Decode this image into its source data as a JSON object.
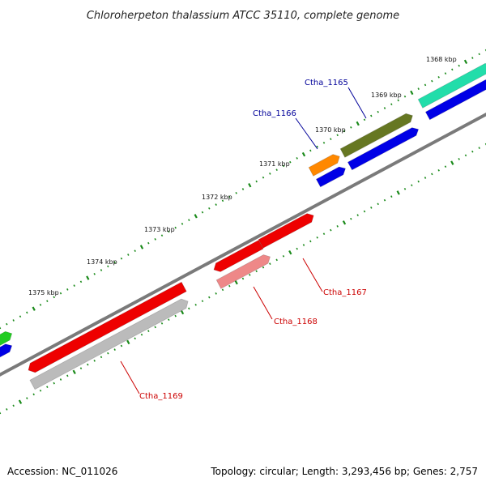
{
  "title": "Chloroherpeton thalassium ATCC 35110, complete genome",
  "footer": {
    "accession": "Accession: NC_011026",
    "stats": "Topology: circular; Length: 3,293,456 bp; Genes: 2,757"
  },
  "colors": {
    "backbone": "#7a7a7a",
    "tick": "#1a8a1a",
    "blue": "#0000e6",
    "green": "#22cc22",
    "teal": "#22ddaa",
    "olive": "#667722",
    "orange": "#ff8800",
    "red": "#ee0000",
    "pink": "#ee8888",
    "grey": "#bbbbbb",
    "label_blue": "#000099",
    "label_red": "#cc0000"
  },
  "ticks": [
    {
      "label": "1368 kbp"
    },
    {
      "label": "1369 kbp"
    },
    {
      "label": "1370 kbp"
    },
    {
      "label": "1371 kbp"
    },
    {
      "label": "1372 kbp"
    },
    {
      "label": "1373 kbp"
    },
    {
      "label": "1374 kbp"
    },
    {
      "label": "1375 kbp"
    }
  ],
  "genes": [
    {
      "name": "Ctha_1165",
      "color": "olive"
    },
    {
      "name": "Ctha_1166",
      "color": "orange"
    },
    {
      "name": "Ctha_1167",
      "color": "red"
    },
    {
      "name": "Ctha_1168",
      "color": "pink"
    },
    {
      "name": "Ctha_1169",
      "color": "red"
    }
  ]
}
